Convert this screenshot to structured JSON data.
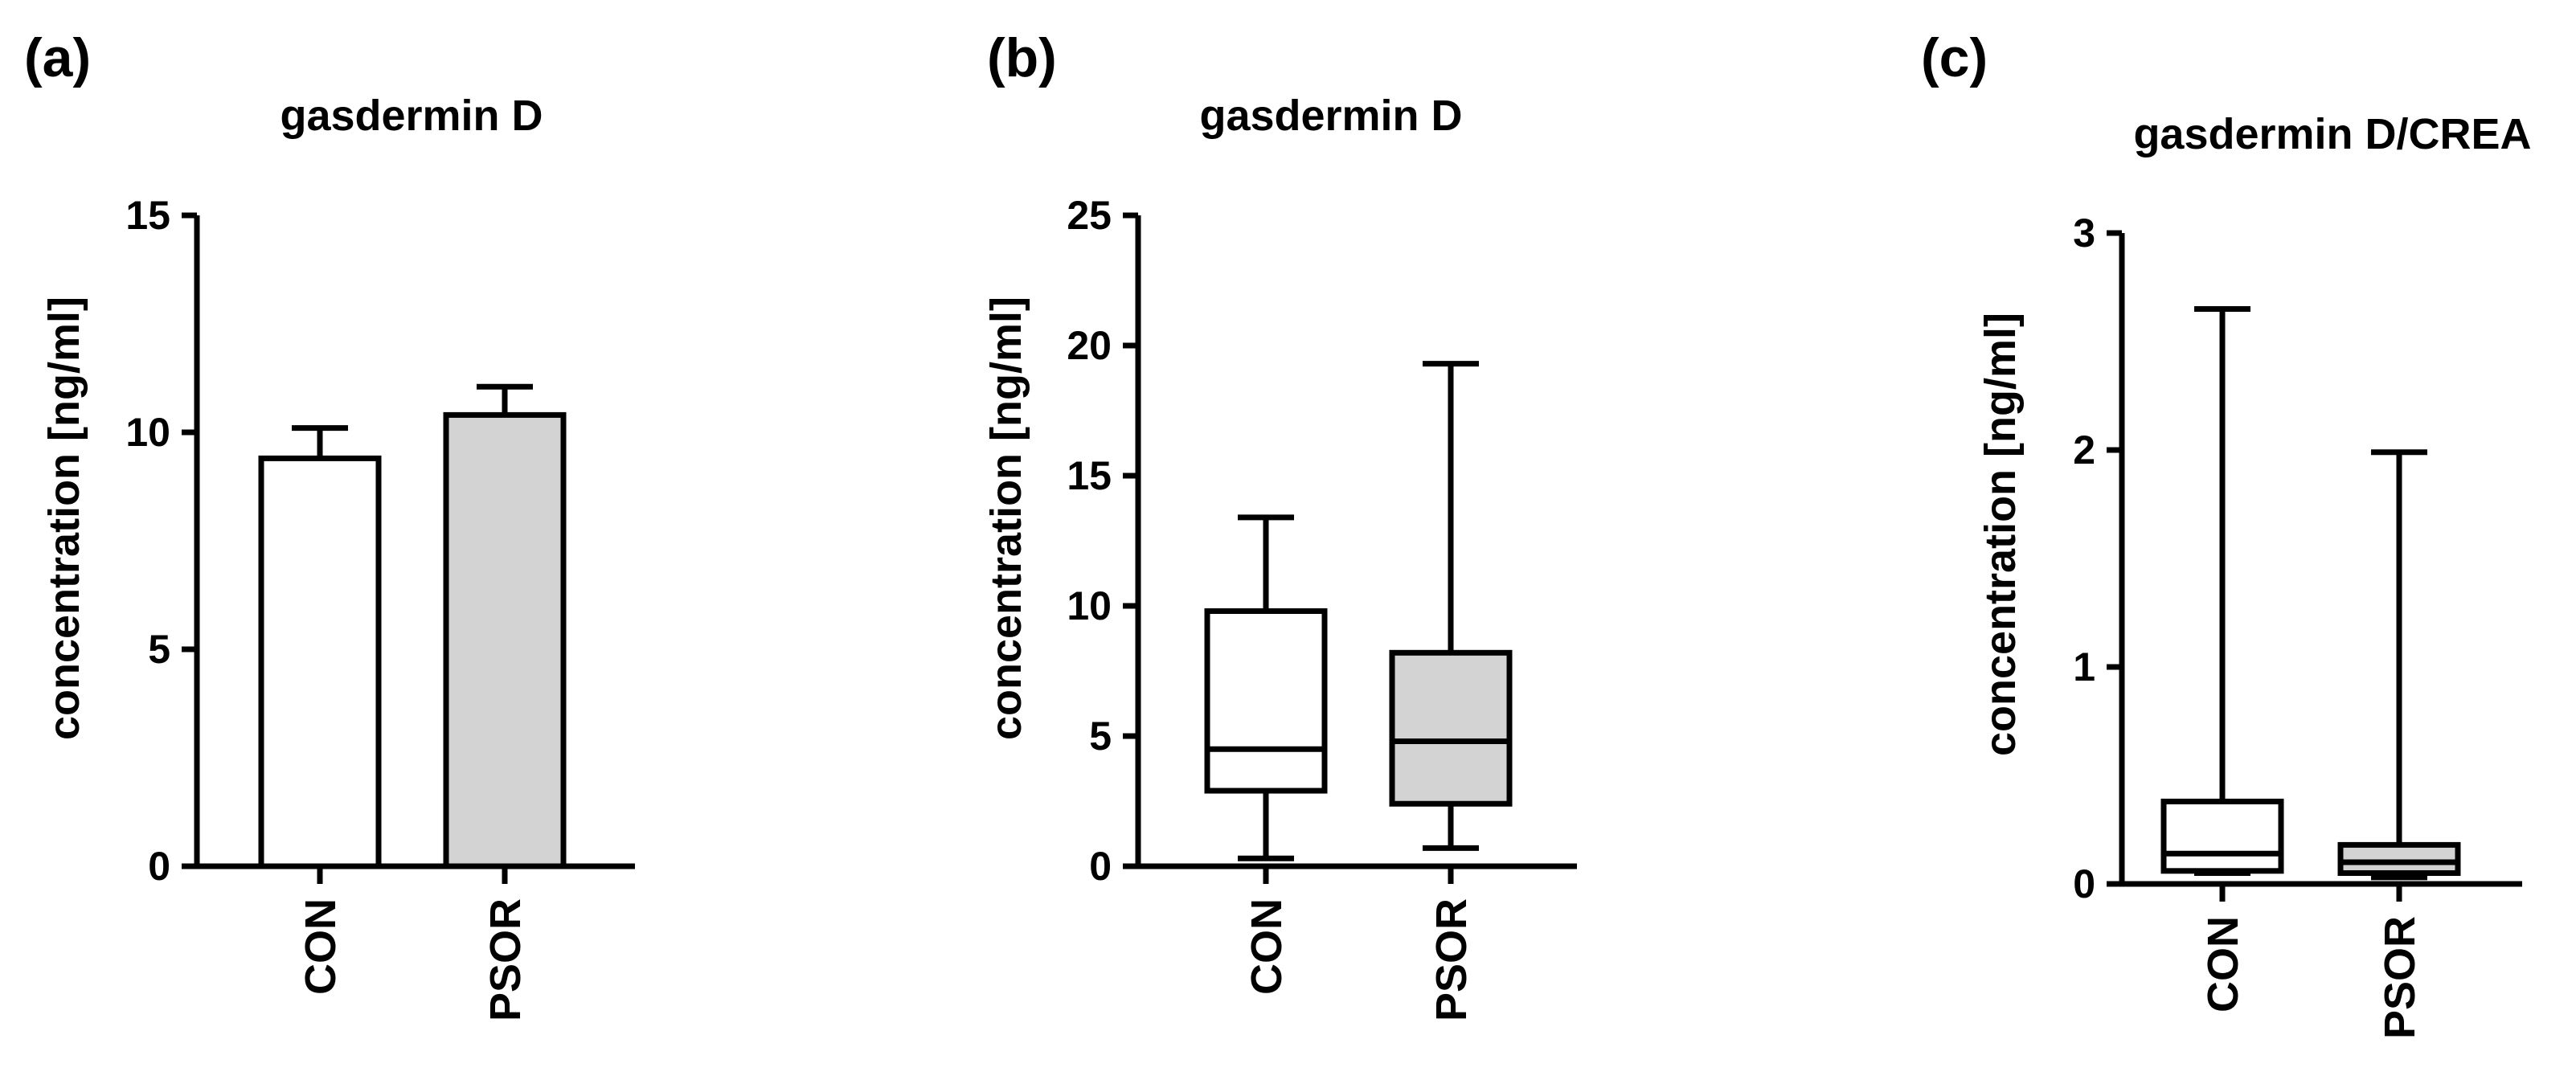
{
  "colors": {
    "con_fill": "#ffffff",
    "psor_fill": "#d3d3d3",
    "stroke": "#000000"
  },
  "chart_data": [
    {
      "panel": "(a)",
      "type": "bar",
      "title": "gasdermin D",
      "ylabel": "concentration [ng/ml]",
      "xlabel": "",
      "categories": [
        "CON",
        "PSOR"
      ],
      "values": [
        9.4,
        10.4
      ],
      "error_upper": [
        10.1,
        11.05
      ],
      "ylim": [
        0,
        15
      ],
      "yticks": [
        0,
        5,
        10,
        15
      ],
      "grid": false
    },
    {
      "panel": "(b)",
      "type": "box",
      "title": "gasdermin D",
      "ylabel": "concentration [ng/ml]",
      "xlabel": "",
      "categories": [
        "CON",
        "PSOR"
      ],
      "boxes": [
        {
          "min": 0.3,
          "q1": 2.9,
          "median": 4.5,
          "q3": 9.8,
          "max": 13.4
        },
        {
          "min": 0.7,
          "q1": 2.4,
          "median": 4.8,
          "q3": 8.2,
          "max": 19.3
        }
      ],
      "ylim": [
        0,
        25
      ],
      "yticks": [
        0,
        5,
        10,
        15,
        20,
        25
      ],
      "grid": false
    },
    {
      "panel": "(c)",
      "type": "box",
      "title": "gasdermin D/CREA",
      "ylabel": "concentration [ng/ml]",
      "xlabel": "",
      "categories": [
        "CON",
        "PSOR"
      ],
      "boxes": [
        {
          "min": 0.05,
          "q1": 0.06,
          "median": 0.14,
          "q3": 0.38,
          "max": 2.65
        },
        {
          "min": 0.03,
          "q1": 0.05,
          "median": 0.1,
          "q3": 0.18,
          "max": 1.99
        }
      ],
      "ylim": [
        0,
        3
      ],
      "yticks": [
        0,
        1,
        2,
        3
      ],
      "grid": false
    }
  ]
}
